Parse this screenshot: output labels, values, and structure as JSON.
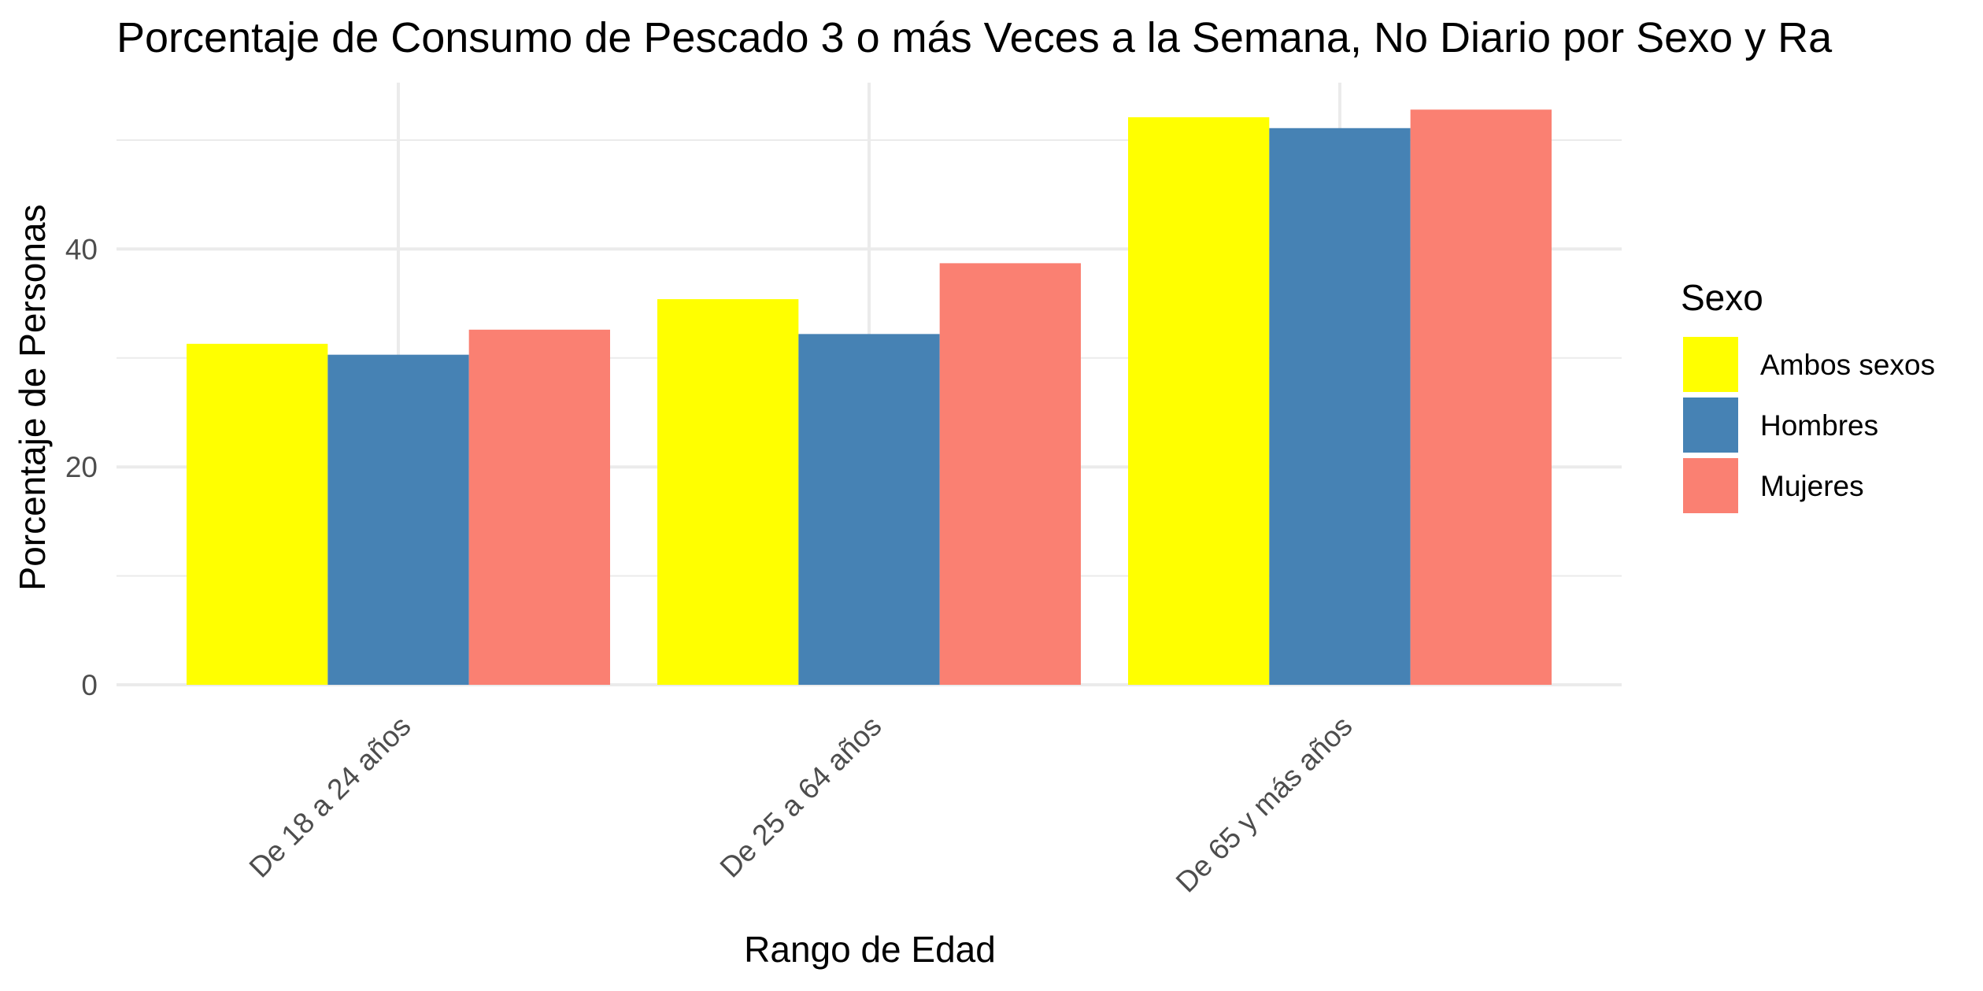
{
  "chart_data": {
    "type": "bar",
    "title": "Porcentaje de Consumo de Pescado 3 o más Veces a la Semana, No Diario por Sexo y Ra",
    "xlabel": "Rango de Edad",
    "ylabel": "Porcentaje de Personas",
    "categories": [
      "De 18 a 24 años",
      "De 25 a 64 años",
      "De 65 y más años"
    ],
    "series": [
      {
        "name": "Ambos sexos",
        "color": "#FFFF00",
        "values": [
          31.3,
          35.4,
          52.1
        ]
      },
      {
        "name": "Hombres",
        "color": "#4682B4",
        "values": [
          30.3,
          32.2,
          51.1
        ]
      },
      {
        "name": "Mujeres",
        "color": "#FA8072",
        "values": [
          32.6,
          38.7,
          52.8
        ]
      }
    ],
    "yticks": [
      0,
      20,
      40
    ],
    "ylim": [
      0,
      55.5
    ],
    "grid": true,
    "legend": {
      "title": "Sexo",
      "position": "right"
    }
  }
}
